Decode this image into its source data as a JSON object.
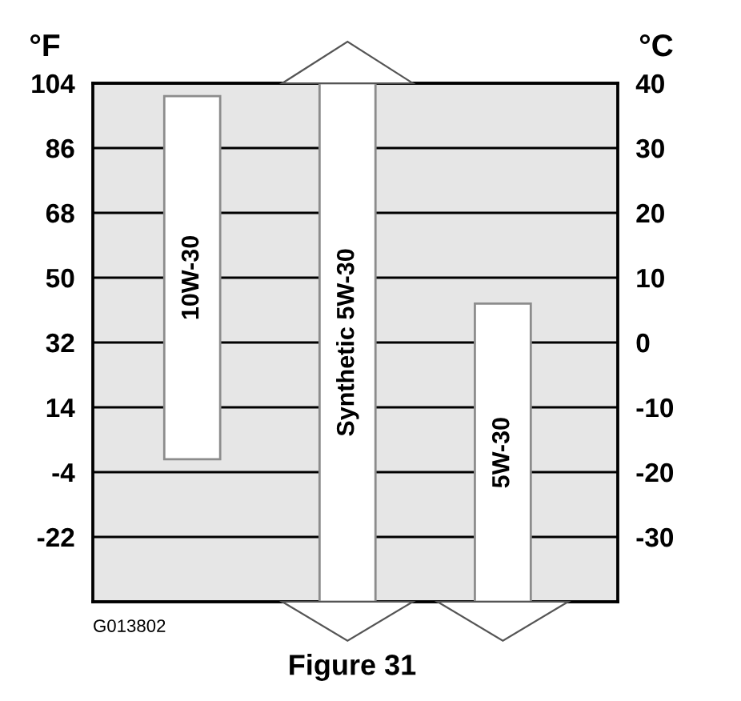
{
  "chart_data": {
    "type": "bar",
    "categories": [
      "10W-30",
      "Synthetic 5W-30",
      "5W-30"
    ],
    "series": [
      {
        "color": "#ffffff",
        "axis": "y2",
        "base": [
          -18,
          -40,
          -40
        ],
        "values": [
          56,
          80,
          46
        ]
      }
    ],
    "ylabel": "°F",
    "y2label": "°C",
    "ylim": [
      -40,
      104
    ],
    "yticks": [
      104,
      86,
      68,
      50,
      32,
      14,
      -4,
      -22
    ],
    "y2lim": [
      -40,
      40
    ],
    "y2ticks": [
      40,
      30,
      20,
      10,
      0,
      -10,
      -20,
      -30
    ],
    "grid": "y",
    "annotations": [
      "G013802",
      "Figure 31"
    ]
  }
}
